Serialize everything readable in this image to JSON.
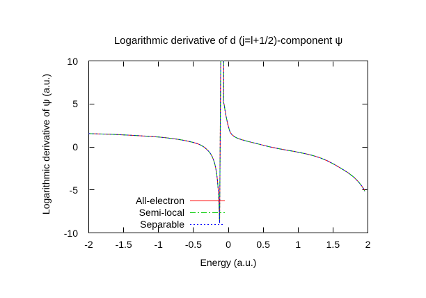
{
  "chart_data": {
    "type": "line",
    "title": "Logarithmic derivative of d (j=l+1/2)-component ψ",
    "xlabel": "Energy (a.u.)",
    "ylabel": "Logarithmic derivative of ψ (a.u.)",
    "xlim": [
      -2,
      2
    ],
    "ylim": [
      -10,
      10
    ],
    "xticks": [
      -2,
      -1.5,
      -1,
      -0.5,
      0,
      0.5,
      1,
      1.5,
      2
    ],
    "yticks": [
      10,
      5,
      0,
      -5,
      -10
    ],
    "grid": false,
    "legend_position": "inside-bottom-left",
    "frame_color": "#000000",
    "background_color": "#ffffff",
    "series": [
      {
        "name": "All-electron",
        "color": "#ff0000",
        "style": "solid"
      },
      {
        "name": "Semi-local",
        "color": "#00cc00",
        "style": "dash-dot"
      },
      {
        "name": "Separable",
        "color": "#0000ff",
        "style": "dotted"
      }
    ],
    "series_note": "All three series coincide; shared sampled points below. Pole (resonance) near E = -0.1 a.u., curve clipped at y = +10/-10.",
    "points": [
      [
        -2.0,
        1.55
      ],
      [
        -1.85,
        1.51
      ],
      [
        -1.7,
        1.47
      ],
      [
        -1.55,
        1.42
      ],
      [
        -1.4,
        1.36
      ],
      [
        -1.25,
        1.29
      ],
      [
        -1.1,
        1.21
      ],
      [
        -1.0,
        1.15
      ],
      [
        -0.9,
        1.07
      ],
      [
        -0.8,
        0.97
      ],
      [
        -0.72,
        0.88
      ],
      [
        -0.64,
        0.77
      ],
      [
        -0.57,
        0.65
      ],
      [
        -0.5,
        0.52
      ],
      [
        -0.45,
        0.4
      ],
      [
        -0.41,
        0.27
      ],
      [
        -0.37,
        0.1
      ],
      [
        -0.34,
        -0.06
      ],
      [
        -0.31,
        -0.28
      ],
      [
        -0.28,
        -0.52
      ],
      [
        -0.255,
        -0.78
      ],
      [
        -0.232,
        -1.1
      ],
      [
        -0.212,
        -1.5
      ],
      [
        -0.195,
        -1.95
      ],
      [
        -0.18,
        -2.5
      ],
      [
        -0.167,
        -3.15
      ],
      [
        -0.156,
        -3.9
      ],
      [
        -0.147,
        -4.75
      ],
      [
        -0.139,
        -5.8
      ],
      [
        -0.133,
        -6.9
      ],
      [
        -0.128,
        -8.0
      ],
      [
        -0.125,
        -8.85
      ],
      [
        -0.108,
        11
      ],
      [
        -0.066,
        11
      ],
      [
        -0.068,
        5.5
      ],
      [
        -0.072,
        5.25
      ],
      [
        -0.06,
        4.95
      ],
      [
        -0.05,
        4.4
      ],
      [
        -0.04,
        3.9
      ],
      [
        -0.028,
        3.4
      ],
      [
        -0.016,
        2.95
      ],
      [
        -0.006,
        2.6
      ],
      [
        0.004,
        2.3
      ],
      [
        0.016,
        1.95
      ],
      [
        0.03,
        1.65
      ],
      [
        0.055,
        1.4
      ],
      [
        0.09,
        1.18
      ],
      [
        0.14,
        0.98
      ],
      [
        0.2,
        0.82
      ],
      [
        0.27,
        0.66
      ],
      [
        0.35,
        0.5
      ],
      [
        0.43,
        0.34
      ],
      [
        0.51,
        0.18
      ],
      [
        0.59,
        0.02
      ],
      [
        0.67,
        -0.12
      ],
      [
        0.76,
        -0.27
      ],
      [
        0.85,
        -0.4
      ],
      [
        0.94,
        -0.52
      ],
      [
        1.03,
        -0.66
      ],
      [
        1.12,
        -0.82
      ],
      [
        1.22,
        -1.02
      ],
      [
        1.32,
        -1.28
      ],
      [
        1.42,
        -1.62
      ],
      [
        1.52,
        -2.04
      ],
      [
        1.62,
        -2.52
      ],
      [
        1.72,
        -3.02
      ],
      [
        1.8,
        -3.52
      ],
      [
        1.86,
        -4.02
      ],
      [
        1.91,
        -4.52
      ],
      [
        1.94,
        -4.88
      ],
      [
        1.955,
        -5.15
      ]
    ]
  }
}
